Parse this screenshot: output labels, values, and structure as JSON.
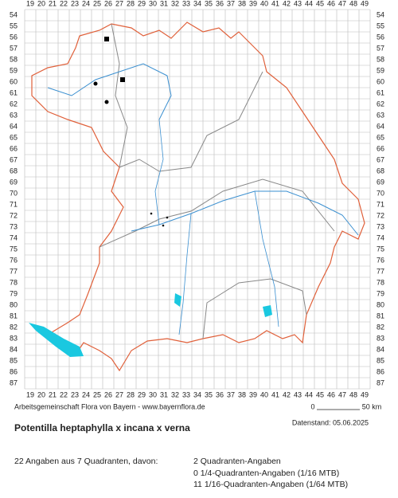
{
  "map": {
    "columns": [
      19,
      20,
      21,
      22,
      23,
      24,
      25,
      26,
      27,
      28,
      29,
      30,
      31,
      32,
      33,
      34,
      35,
      36,
      37,
      38,
      39,
      40,
      41,
      42,
      43,
      44,
      45,
      46,
      47,
      48,
      49
    ],
    "rows": [
      54,
      55,
      56,
      57,
      58,
      59,
      60,
      61,
      62,
      63,
      64,
      65,
      66,
      67,
      68,
      69,
      70,
      71,
      72,
      73,
      74,
      75,
      76,
      77,
      78,
      79,
      80,
      81,
      82,
      83,
      84,
      85,
      86,
      87
    ]
  },
  "credit": "Arbeitsgemeinschaft Flora von Bayern - www.bayernflora.de",
  "scale": {
    "start": "0",
    "end": "50 km"
  },
  "date": "Datenstand: 05.06.2025",
  "title": "Potentilla heptaphylla x incana x verna",
  "summary": "22 Angaben aus 7 Quadranten, davon:",
  "counts": [
    "2 Quadranten-Angaben",
    "0 1/4-Quadranten-Angaben (1/16 MTB)",
    "11 1/16-Quadranten-Angaben (1/64 MTB)"
  ]
}
